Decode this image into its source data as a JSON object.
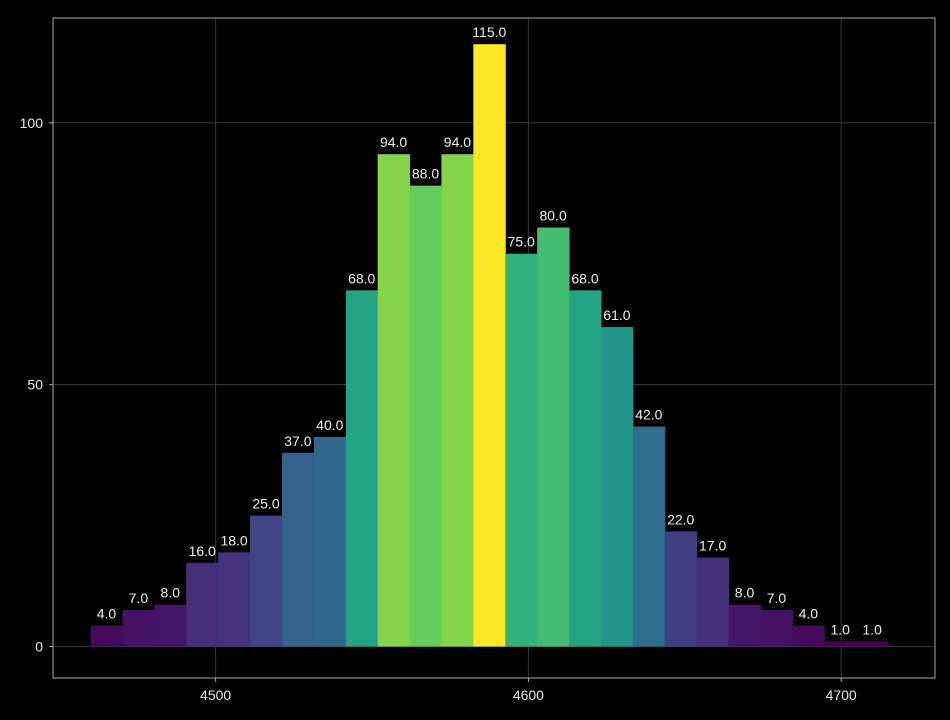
{
  "chart_data": {
    "type": "bar",
    "title": "",
    "xlabel": "",
    "ylabel": "",
    "bin_width": 10.2,
    "bin_start": 4460.0,
    "values": [
      4,
      7,
      8,
      16,
      18,
      25,
      37,
      40,
      68,
      94,
      88,
      94,
      115,
      75,
      80,
      68,
      61,
      42,
      22,
      17,
      8,
      7,
      4,
      1,
      1
    ],
    "labels": [
      "4.0",
      "7.0",
      "8.0",
      "16.0",
      "18.0",
      "25.0",
      "37.0",
      "40.0",
      "68.0",
      "94.0",
      "88.0",
      "94.0",
      "115.0",
      "75.0",
      "80.0",
      "68.0",
      "61.0",
      "42.0",
      "22.0",
      "17.0",
      "8.0",
      "7.0",
      "4.0",
      "1.0",
      "1.0"
    ],
    "xlim": [
      4448,
      4730
    ],
    "ylim": [
      -6,
      120
    ],
    "x_ticks": [
      4500,
      4600,
      4700
    ],
    "x_tick_labels": [
      "4500",
      "4600",
      "4700"
    ],
    "y_ticks": [
      0,
      50,
      100
    ],
    "y_tick_labels": [
      "0",
      "50",
      "100"
    ],
    "grid": true,
    "colormap": "viridis"
  }
}
